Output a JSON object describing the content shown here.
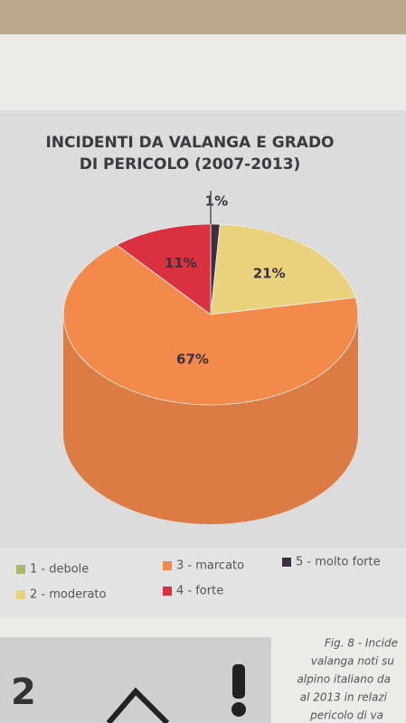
{
  "chart_data": {
    "type": "pie",
    "title": "INCIDENTI DA VALANGA E GRADO DI PERICOLO (2007-2013)",
    "categories": [
      "1 - debole",
      "2 - moderato",
      "3 - marcato",
      "4 - forte",
      "5 - molto forte"
    ],
    "values": [
      null,
      21,
      67,
      11,
      1
    ],
    "value_labels": [
      null,
      "21%",
      "67%",
      "11%",
      "1%"
    ],
    "colors": [
      "#a9b86a",
      "#ead27c",
      "#f28a4c",
      "#d9313f",
      "#3a3040"
    ],
    "legend": "bottom"
  },
  "caption": [
    "Fig. 8 - Incide",
    "valanga noti su",
    "alpino italiano da",
    "al 2013 in relazi",
    "pericolo di va"
  ],
  "page_number": "2"
}
